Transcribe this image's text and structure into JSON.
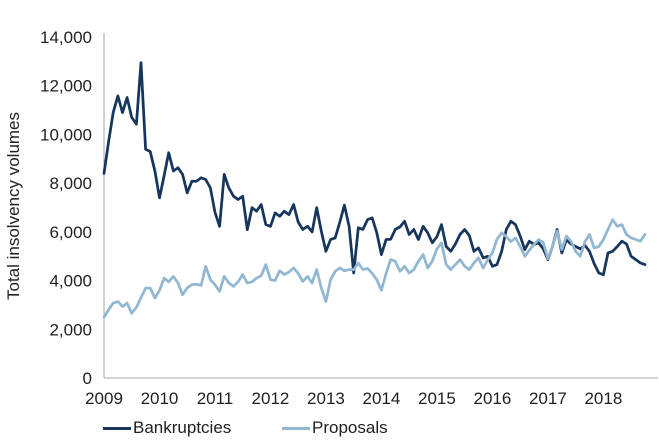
{
  "chart_data": {
    "type": "line",
    "title": "",
    "xlabel": "",
    "ylabel": "Total insolvency volumes",
    "grid": false,
    "x_axis": {
      "unit": "monthly",
      "start": "2009-01",
      "end": "2018-10",
      "tick_labels": [
        "2009",
        "2010",
        "2011",
        "2012",
        "2013",
        "2014",
        "2015",
        "2016",
        "2017",
        "2018"
      ],
      "months_per_tick": 12
    },
    "y_axis": {
      "min": 0,
      "max": 14000,
      "ticks": [
        0,
        2000,
        4000,
        6000,
        8000,
        10000,
        12000,
        14000
      ],
      "tick_labels": [
        "0",
        "2,000",
        "4,000",
        "6,000",
        "8,000",
        "10,000",
        "12,000",
        "14,000"
      ]
    },
    "legend": {
      "position": "bottom-left"
    },
    "colors": {
      "axis": "#A6A6A6",
      "text": "#1F1F1F"
    },
    "series": [
      {
        "name": "Bankruptcies",
        "color": "#17365D",
        "values": [
          8400,
          9700,
          10900,
          11580,
          10895,
          11515,
          10700,
          10420,
          12950,
          9390,
          9300,
          8500,
          7400,
          8300,
          9250,
          8500,
          8630,
          8360,
          7600,
          8080,
          8080,
          8220,
          8150,
          7800,
          6800,
          6230,
          8360,
          7810,
          7465,
          7330,
          7465,
          6090,
          6990,
          6850,
          7125,
          6300,
          6230,
          6780,
          6640,
          6850,
          6710,
          7125,
          6400,
          6095,
          6230,
          6000,
          6990,
          6025,
          5200,
          5685,
          5750,
          6400,
          7100,
          6230,
          4310,
          6165,
          6100,
          6505,
          6575,
          5960,
          5065,
          5685,
          5700,
          6100,
          6200,
          6435,
          5890,
          6095,
          5685,
          6230,
          5960,
          5550,
          5800,
          6300,
          5400,
          5200,
          5500,
          5890,
          6095,
          5850,
          5200,
          5340,
          4930,
          4995,
          4585,
          4655,
          5200,
          6100,
          6435,
          6300,
          5820,
          5270,
          5615,
          5480,
          5550,
          5300,
          4860,
          5400,
          6095,
          5135,
          5685,
          5500,
          5400,
          5300,
          5450,
          5200,
          4700,
          4310,
          4240,
          5135,
          5200,
          5400,
          5615,
          5500,
          4995,
          4860,
          4720,
          4655
        ]
      },
      {
        "name": "Proposals",
        "color": "#92B7D1",
        "values": [
          2500,
          2800,
          3075,
          3140,
          2935,
          3075,
          2660,
          2900,
          3300,
          3690,
          3690,
          3280,
          3600,
          4100,
          3950,
          4170,
          3900,
          3420,
          3700,
          3830,
          3850,
          3800,
          4585,
          4035,
          3830,
          3555,
          4170,
          3900,
          3760,
          3950,
          4240,
          3900,
          3950,
          4100,
          4200,
          4655,
          4035,
          4000,
          4400,
          4250,
          4350,
          4515,
          4300,
          3965,
          4170,
          3900,
          4450,
          3700,
          3140,
          4035,
          4380,
          4515,
          4400,
          4450,
          4450,
          4720,
          4450,
          4500,
          4300,
          4035,
          3600,
          4300,
          4860,
          4790,
          4380,
          4585,
          4310,
          4450,
          4790,
          5065,
          4515,
          4800,
          5300,
          5550,
          4655,
          4450,
          4655,
          4860,
          4585,
          4450,
          4720,
          4930,
          4515,
          4860,
          5135,
          5700,
          5960,
          5800,
          5600,
          5750,
          5400,
          4995,
          5250,
          5480,
          5685,
          5550,
          4900,
          5400,
          6025,
          5270,
          5820,
          5615,
          5200,
          4995,
          5600,
          5890,
          5340,
          5400,
          5685,
          6100,
          6500,
          6230,
          6300,
          5890,
          5750,
          5685,
          5615,
          5890
        ]
      }
    ]
  }
}
